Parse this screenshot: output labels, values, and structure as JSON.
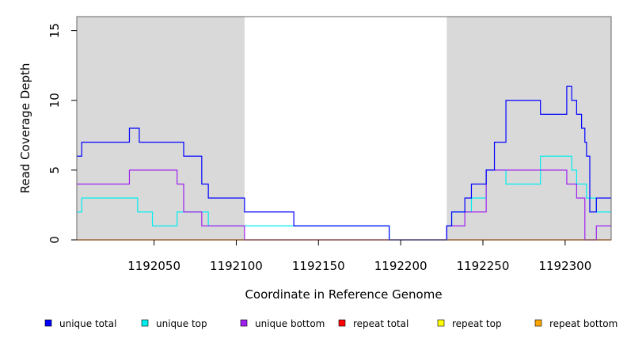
{
  "chart_data": {
    "type": "line",
    "style": "step",
    "xlabel": "Coordinate in Reference Genome",
    "ylabel": "Read Coverage Depth",
    "xlim": [
      1192003,
      1192328
    ],
    "ylim": [
      0,
      16
    ],
    "x_ticks": [
      1192050,
      1192100,
      1192150,
      1192200,
      1192250,
      1192300
    ],
    "y_ticks": [
      0,
      5,
      10,
      15
    ],
    "grid": false,
    "shaded_regions": [
      {
        "x": [
          1192003,
          1192105
        ],
        "color": "#d9d9d9"
      },
      {
        "x": [
          1192228,
          1192328
        ],
        "color": "#d9d9d9"
      }
    ],
    "legend_position": "bottom",
    "series": [
      {
        "name": "unique total",
        "color": "#0000ff",
        "x": [
          1192003,
          1192006,
          1192035,
          1192041,
          1192044,
          1192068,
          1192079,
          1192083,
          1192105,
          1192135,
          1192193,
          1192228,
          1192231,
          1192239,
          1192243,
          1192252,
          1192257,
          1192264,
          1192285,
          1192301,
          1192304,
          1192307,
          1192310,
          1192312,
          1192313,
          1192315,
          1192319,
          1192328
        ],
        "y": [
          6,
          7,
          8,
          7,
          7,
          6,
          4,
          3,
          2,
          1,
          0,
          1,
          2,
          3,
          4,
          5,
          7,
          10,
          9,
          11,
          10,
          9,
          8,
          7,
          6,
          2,
          3,
          3
        ]
      },
      {
        "name": "unique top",
        "color": "#00eeee",
        "x": [
          1192003,
          1192006,
          1192036,
          1192040,
          1192045,
          1192049,
          1192064,
          1192071,
          1192083,
          1192105,
          1192135,
          1192193,
          1192228,
          1192231,
          1192243,
          1192252,
          1192257,
          1192264,
          1192285,
          1192304,
          1192307,
          1192313,
          1192319,
          1192328
        ],
        "y": [
          2,
          3,
          3,
          2,
          2,
          1,
          2,
          2,
          1,
          1,
          1,
          0,
          1,
          2,
          3,
          5,
          5,
          4,
          6,
          5,
          4,
          3,
          2,
          2
        ]
      },
      {
        "name": "unique bottom",
        "color": "#a020f0",
        "x": [
          1192003,
          1192035,
          1192064,
          1192068,
          1192079,
          1192105,
          1192193,
          1192228,
          1192239,
          1192243,
          1192252,
          1192257,
          1192264,
          1192285,
          1192301,
          1192304,
          1192307,
          1192312,
          1192316,
          1192319,
          1192328
        ],
        "y": [
          4,
          5,
          4,
          2,
          1,
          0,
          0,
          1,
          2,
          2,
          5,
          5,
          5,
          5,
          4,
          4,
          3,
          0,
          0,
          1,
          1
        ]
      },
      {
        "name": "repeat total",
        "color": "#ff0000",
        "x": [
          1192003,
          1192328
        ],
        "y": [
          0,
          0
        ]
      },
      {
        "name": "repeat top",
        "color": "#ffff00",
        "x": [
          1192003,
          1192328
        ],
        "y": [
          0,
          0
        ]
      },
      {
        "name": "repeat bottom",
        "color": "#ffa500",
        "x": [
          1192003,
          1192328
        ],
        "y": [
          0,
          0
        ]
      }
    ]
  }
}
